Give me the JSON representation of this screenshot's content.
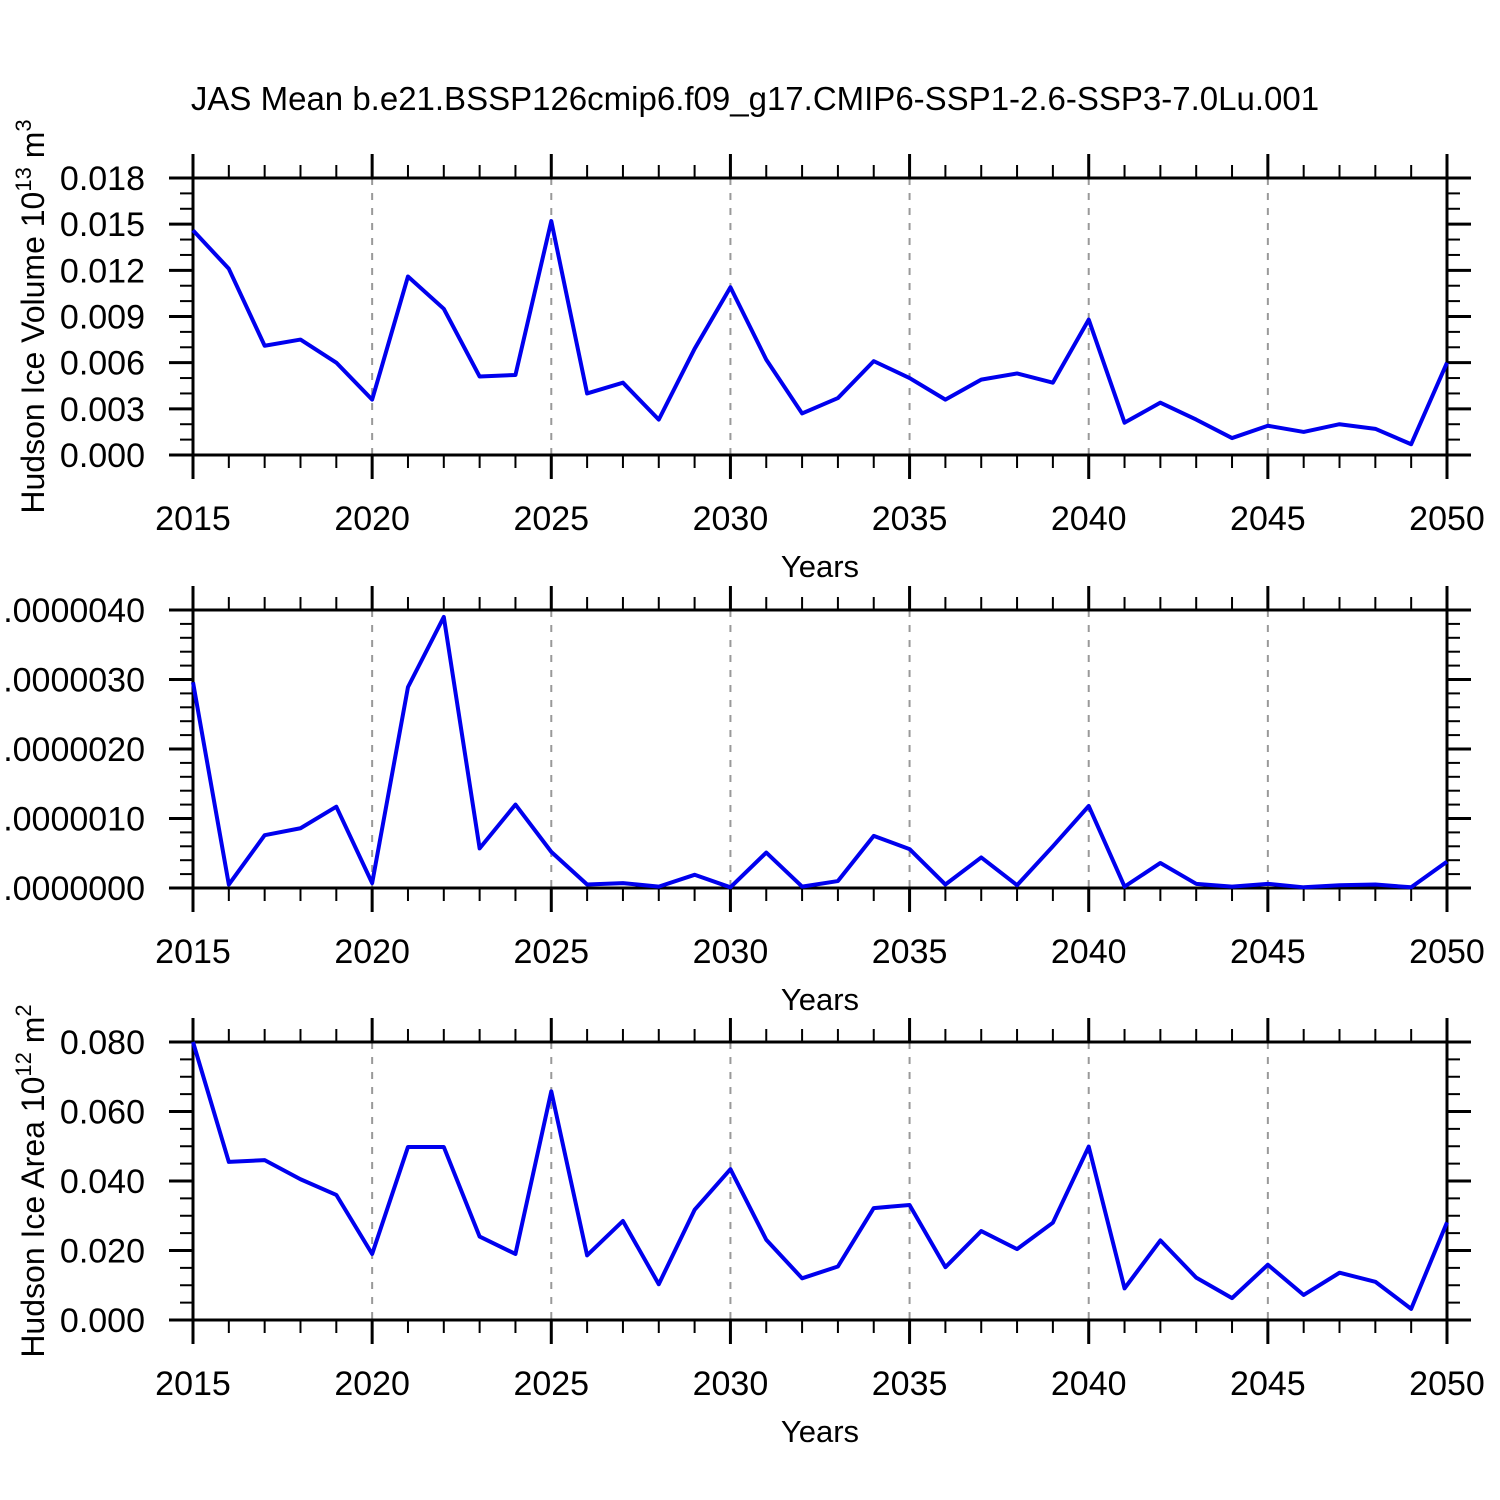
{
  "title": "JAS Mean b.e21.BSSP126cmip6.f09_g17.CMIP6-SSP1-2.6-SSP3-7.0Lu.001",
  "line_color": "#0000EE",
  "grid_color": "#999999",
  "x_axis": {
    "label": "Years",
    "tick_labels": [
      "2015",
      "2020",
      "2025",
      "2030",
      "2035",
      "2040",
      "2045",
      "2050"
    ],
    "range": [
      2015,
      2050
    ],
    "grid_years": [
      2020,
      2025,
      2030,
      2035,
      2040,
      2045
    ]
  },
  "chart_data": [
    {
      "type": "line",
      "name": "hudson-ice-volume",
      "ylabel_parts": [
        [
          "t",
          "Hudson Ice Volume 10"
        ],
        [
          "s",
          "13"
        ],
        [
          "t",
          " m"
        ],
        [
          "s",
          "3"
        ]
      ],
      "xlabel": "Years",
      "ylim": [
        0,
        0.018
      ],
      "ytick_values": [
        0,
        0.003,
        0.006,
        0.009,
        0.012,
        0.015,
        0.018
      ],
      "ytick_labels": [
        "0.000",
        "0.003",
        "0.006",
        "0.009",
        "0.012",
        "0.015",
        "0.018"
      ],
      "yminor_divisions": 3,
      "x": [
        2015,
        2016,
        2017,
        2018,
        2019,
        2020,
        2021,
        2022,
        2023,
        2024,
        2025,
        2026,
        2027,
        2028,
        2029,
        2030,
        2031,
        2032,
        2033,
        2034,
        2035,
        2036,
        2037,
        2038,
        2039,
        2040,
        2041,
        2042,
        2043,
        2044,
        2045,
        2046,
        2047,
        2048,
        2049,
        2050
      ],
      "values": [
        0.0146,
        0.0121,
        0.0071,
        0.0075,
        0.006,
        0.0036,
        0.0116,
        0.0095,
        0.0051,
        0.0052,
        0.0152,
        0.004,
        0.0047,
        0.0023,
        0.0069,
        0.0109,
        0.0062,
        0.0027,
        0.0037,
        0.0061,
        0.005,
        0.0036,
        0.0049,
        0.0053,
        0.0047,
        0.0088,
        0.0021,
        0.0034,
        0.0023,
        0.0011,
        0.0019,
        0.0015,
        0.002,
        0.0017,
        0.0007,
        0.006
      ]
    },
    {
      "type": "line",
      "name": "middle-series",
      "ylabel_parts": [],
      "xlabel": "Years",
      "ylim": [
        0,
        4e-06
      ],
      "ytick_values": [
        0,
        1e-06,
        2e-06,
        3e-06,
        4e-06
      ],
      "ytick_labels": [
        ".0000000",
        ".0000010",
        ".0000020",
        ".0000030",
        ".0000040"
      ],
      "yminor_divisions": 5,
      "x": [
        2015,
        2016,
        2017,
        2018,
        2019,
        2020,
        2021,
        2022,
        2023,
        2024,
        2025,
        2026,
        2027,
        2028,
        2029,
        2030,
        2031,
        2032,
        2033,
        2034,
        2035,
        2036,
        2037,
        2038,
        2039,
        2040,
        2041,
        2042,
        2043,
        2044,
        2045,
        2046,
        2047,
        2048,
        2049,
        2050
      ],
      "values": [
        2.96e-06,
        5e-08,
        7.6e-07,
        8.6e-07,
        1.17e-06,
        7e-08,
        2.89e-06,
        3.9e-06,
        5.7e-07,
        1.2e-06,
        5.2e-07,
        5e-08,
        7e-08,
        2e-08,
        1.9e-07,
        1e-08,
        5.1e-07,
        2e-08,
        1e-07,
        7.5e-07,
        5.6e-07,
        5e-08,
        4.4e-07,
        4e-08,
        6e-07,
        1.18e-06,
        2e-08,
        3.6e-07,
        6e-08,
        2e-08,
        6e-08,
        1e-08,
        4e-08,
        5e-08,
        1e-08,
        3.8e-07
      ]
    },
    {
      "type": "line",
      "name": "hudson-ice-area",
      "ylabel_parts": [
        [
          "t",
          "Hudson Ice Area 10"
        ],
        [
          "s",
          "12"
        ],
        [
          "t",
          " m"
        ],
        [
          "s",
          "2"
        ]
      ],
      "xlabel": "Years",
      "ylim": [
        0,
        0.08
      ],
      "ytick_values": [
        0,
        0.02,
        0.04,
        0.06,
        0.08
      ],
      "ytick_labels": [
        "0.000",
        "0.020",
        "0.040",
        "0.060",
        "0.080"
      ],
      "yminor_divisions": 4,
      "x": [
        2015,
        2016,
        2017,
        2018,
        2019,
        2020,
        2021,
        2022,
        2023,
        2024,
        2025,
        2026,
        2027,
        2028,
        2029,
        2030,
        2031,
        2032,
        2033,
        2034,
        2035,
        2036,
        2037,
        2038,
        2039,
        2040,
        2041,
        2042,
        2043,
        2044,
        2045,
        2046,
        2047,
        2048,
        2049,
        2050
      ],
      "values": [
        0.08,
        0.0455,
        0.046,
        0.0405,
        0.036,
        0.019,
        0.0498,
        0.0498,
        0.024,
        0.019,
        0.0658,
        0.0186,
        0.0285,
        0.0103,
        0.0317,
        0.0434,
        0.0231,
        0.012,
        0.0154,
        0.0322,
        0.0331,
        0.0152,
        0.0256,
        0.0204,
        0.028,
        0.0499,
        0.0091,
        0.0229,
        0.0122,
        0.0063,
        0.0159,
        0.0072,
        0.0136,
        0.011,
        0.0032,
        0.0281
      ]
    }
  ]
}
